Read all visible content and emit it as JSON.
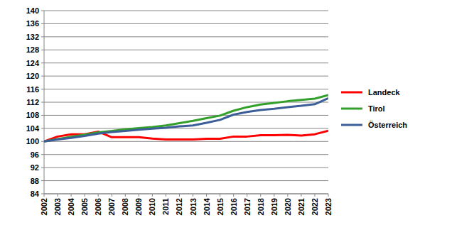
{
  "chart_data": {
    "type": "line",
    "x": [
      2002,
      2003,
      2004,
      2005,
      2006,
      2007,
      2008,
      2009,
      2010,
      2011,
      2012,
      2013,
      2014,
      2015,
      2016,
      2017,
      2018,
      2019,
      2020,
      2021,
      2022,
      2023
    ],
    "xlim": [
      2002,
      2023
    ],
    "xticks": [
      2002,
      2003,
      2004,
      2005,
      2006,
      2007,
      2008,
      2009,
      2010,
      2011,
      2012,
      2013,
      2014,
      2015,
      2016,
      2017,
      2018,
      2019,
      2020,
      2021,
      2022,
      2023
    ],
    "ylim": [
      84,
      140
    ],
    "yticks": [
      84,
      88,
      92,
      96,
      100,
      104,
      108,
      112,
      116,
      120,
      124,
      128,
      132,
      136,
      140
    ],
    "grid": true,
    "legend": "right",
    "series": [
      {
        "name": "Landeck",
        "color": "#ff0000",
        "values": [
          100,
          101.5,
          102.2,
          102.2,
          103,
          101.3,
          101.3,
          101.3,
          100.9,
          100.6,
          100.6,
          100.6,
          100.8,
          100.8,
          101.5,
          101.5,
          101.9,
          101.9,
          102,
          101.8,
          102.2,
          103.3
        ]
      },
      {
        "name": "Tirol",
        "color": "#33a02c",
        "values": [
          100,
          100.7,
          101.4,
          102.1,
          102.8,
          103.2,
          103.7,
          104.1,
          104.4,
          104.9,
          105.6,
          106.3,
          107.1,
          107.9,
          109.4,
          110.5,
          111.3,
          111.8,
          112.3,
          112.7,
          113.1,
          114.2
        ]
      },
      {
        "name": "Österreich",
        "color": "#3c5e98",
        "values": [
          100,
          100.6,
          101.1,
          101.7,
          102.4,
          102.9,
          103.2,
          103.6,
          103.9,
          104.2,
          104.6,
          104.9,
          105.7,
          106.6,
          108.2,
          109.0,
          109.6,
          110.0,
          110.5,
          110.9,
          111.4,
          113.2
        ]
      }
    ]
  }
}
